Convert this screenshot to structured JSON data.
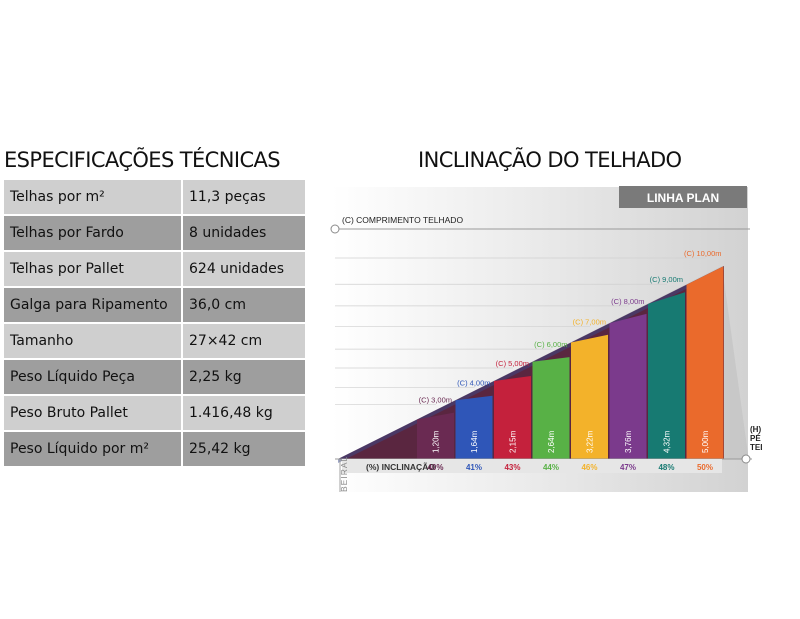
{
  "specs": {
    "title": "ESPECIFICAÇÕES TÉCNICAS",
    "rows": [
      {
        "label": "Telhas por m²",
        "value": "11,3 peças"
      },
      {
        "label": "Telhas por Fardo",
        "value": "8 unidades"
      },
      {
        "label": "Telhas por Pallet",
        "value": "624 unidades"
      },
      {
        "label": "Galga para Ripamento",
        "value": "36,0 cm"
      },
      {
        "label": "Tamanho",
        "value": "27×42 cm"
      },
      {
        "label": "Peso Líquido Peça",
        "value": "2,25 kg"
      },
      {
        "label": "Peso Bruto Pallet",
        "value": "1.416,48 kg"
      },
      {
        "label": "Peso Líquido por m²",
        "value": "25,42 kg"
      }
    ]
  },
  "inclination": {
    "title": "INCLINAÇÃO DO TELHADO",
    "badge": "LINHA PLAN",
    "length_axis_label": "(C) COMPRIMENTO TELHADO",
    "height_axis_label_1": "(H)",
    "height_axis_label_2": "PÉ DIREITO",
    "height_axis_label_3": "TELHADO",
    "inclination_label": "(%) INCLINAÇÃO",
    "eave_label": "BEIRAL"
  },
  "chart_data": {
    "type": "bar",
    "title": "INCLINAÇÃO DO TELHADO",
    "series": [
      {
        "length": "(C) 3,00m",
        "height": "1,20m",
        "inclination": "40%",
        "color": "#6a2a52"
      },
      {
        "length": "(C) 4,00m",
        "height": "1,64m",
        "inclination": "41%",
        "color": "#2f56b8"
      },
      {
        "length": "(C) 5,00m",
        "height": "2,15m",
        "inclination": "43%",
        "color": "#c4213c"
      },
      {
        "length": "(C) 6,00m",
        "height": "2,64m",
        "inclination": "44%",
        "color": "#58b146"
      },
      {
        "length": "(C) 7,00m",
        "height": "3,22m",
        "inclination": "46%",
        "color": "#f3b22a"
      },
      {
        "length": "(C) 8,00m",
        "height": "3,76m",
        "inclination": "47%",
        "color": "#7b3a8c"
      },
      {
        "length": "(C) 9,00m",
        "height": "4,32m",
        "inclination": "48%",
        "color": "#177a72"
      },
      {
        "length": "(C) 10,00m",
        "height": "5,00m",
        "inclination": "50%",
        "color": "#ea6a2c"
      }
    ],
    "heights_numeric": [
      1.2,
      1.64,
      2.15,
      2.64,
      3.22,
      3.76,
      4.32,
      5.0
    ]
  }
}
